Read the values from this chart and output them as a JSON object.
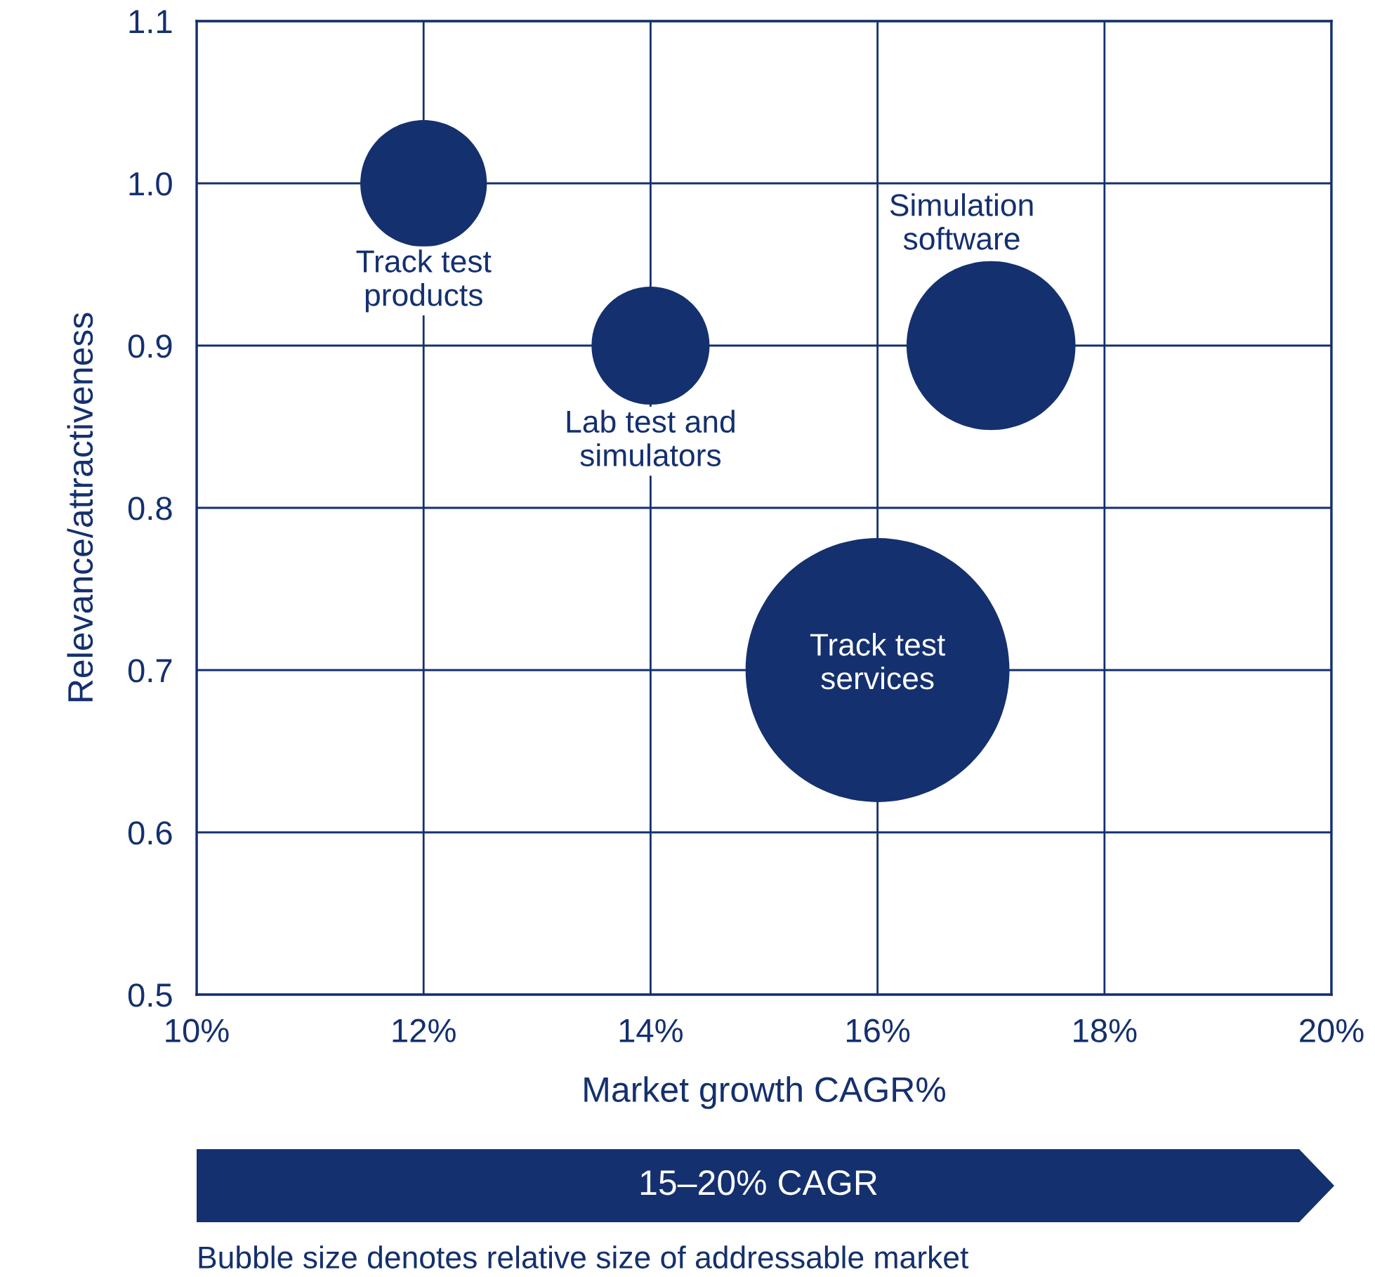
{
  "chart_data": {
    "type": "bubble",
    "xlabel": "Market growth CAGR%",
    "ylabel": "Relevance/attractiveness",
    "series": [
      {
        "color": "#14306e",
        "x": [
          12,
          14,
          17,
          16
        ],
        "values": [
          1.0,
          0.9,
          0.9,
          0.7
        ],
        "sizes": [
          0.23,
          0.2,
          0.41,
          1
        ]
      }
    ],
    "xlim": [
      10,
      20
    ],
    "xticks": [
      {
        "value": 10,
        "label": "10%"
      },
      {
        "value": 12,
        "label": "12%"
      },
      {
        "value": 14,
        "label": "14%"
      },
      {
        "value": 16,
        "label": "16%"
      },
      {
        "value": 18,
        "label": "18%"
      },
      {
        "value": 20,
        "label": "20%"
      }
    ],
    "ylim": [
      0.5,
      1.1
    ],
    "yticks": [
      0.5,
      0.6,
      0.7,
      0.8,
      0.9,
      {
        "value": 1,
        "label": "1.0"
      },
      1.1
    ],
    "grid": true,
    "annotations": [
      "Track test\nproducts",
      "Lab test and\nsimulators",
      "Simulation\nsoftware",
      "Track test\nservices",
      "15–20% CAGR",
      "Bubble size denotes relative size of addressable market"
    ]
  }
}
